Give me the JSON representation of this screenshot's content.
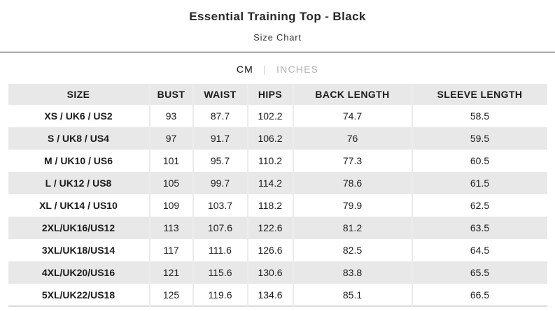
{
  "page": {
    "title": "Essential Training Top - Black",
    "subtitle": "Size Chart"
  },
  "unit_toggle": {
    "active_unit": "CM",
    "cm_label": "CM",
    "separator": "|",
    "inches_label": "INCHES"
  },
  "table": {
    "headers": [
      "SIZE",
      "BUST",
      "WAIST",
      "HIPS",
      "BACK LENGTH",
      "SLEEVE LENGTH"
    ],
    "rows": [
      [
        "XS / UK6 / US2",
        "93",
        "87.7",
        "102.2",
        "74.7",
        "58.5"
      ],
      [
        "S / UK8 / US4",
        "97",
        "91.7",
        "106.2",
        "76",
        "59.5"
      ],
      [
        "M / UK10 / US6",
        "101",
        "95.7",
        "110.2",
        "77.3",
        "60.5"
      ],
      [
        "L / UK12 / US8",
        "105",
        "99.7",
        "114.2",
        "78.6",
        "61.5"
      ],
      [
        "XL / UK14 / US10",
        "109",
        "103.7",
        "118.2",
        "79.9",
        "62.5"
      ],
      [
        "2XL/UK16/US12",
        "113",
        "107.6",
        "122.6",
        "81.2",
        "63.5"
      ],
      [
        "3XL/UK18/US14",
        "117",
        "111.6",
        "126.6",
        "82.5",
        "64.5"
      ],
      [
        "4XL/UK20/US16",
        "121",
        "115.6",
        "130.6",
        "83.8",
        "65.5"
      ],
      [
        "5XL/UK22/US18",
        "125",
        "119.6",
        "134.6",
        "85.1",
        "66.5"
      ]
    ]
  },
  "colors": {
    "header_row_bg": "#e8e8e8",
    "alt_row_bg": "#e8e8e8",
    "divider": "#1f1f1f",
    "cell_border": "#ececec",
    "active_unit_text": "#151515",
    "inactive_unit_text": "#b5b5b5",
    "body_text": "#1c1c1c"
  }
}
